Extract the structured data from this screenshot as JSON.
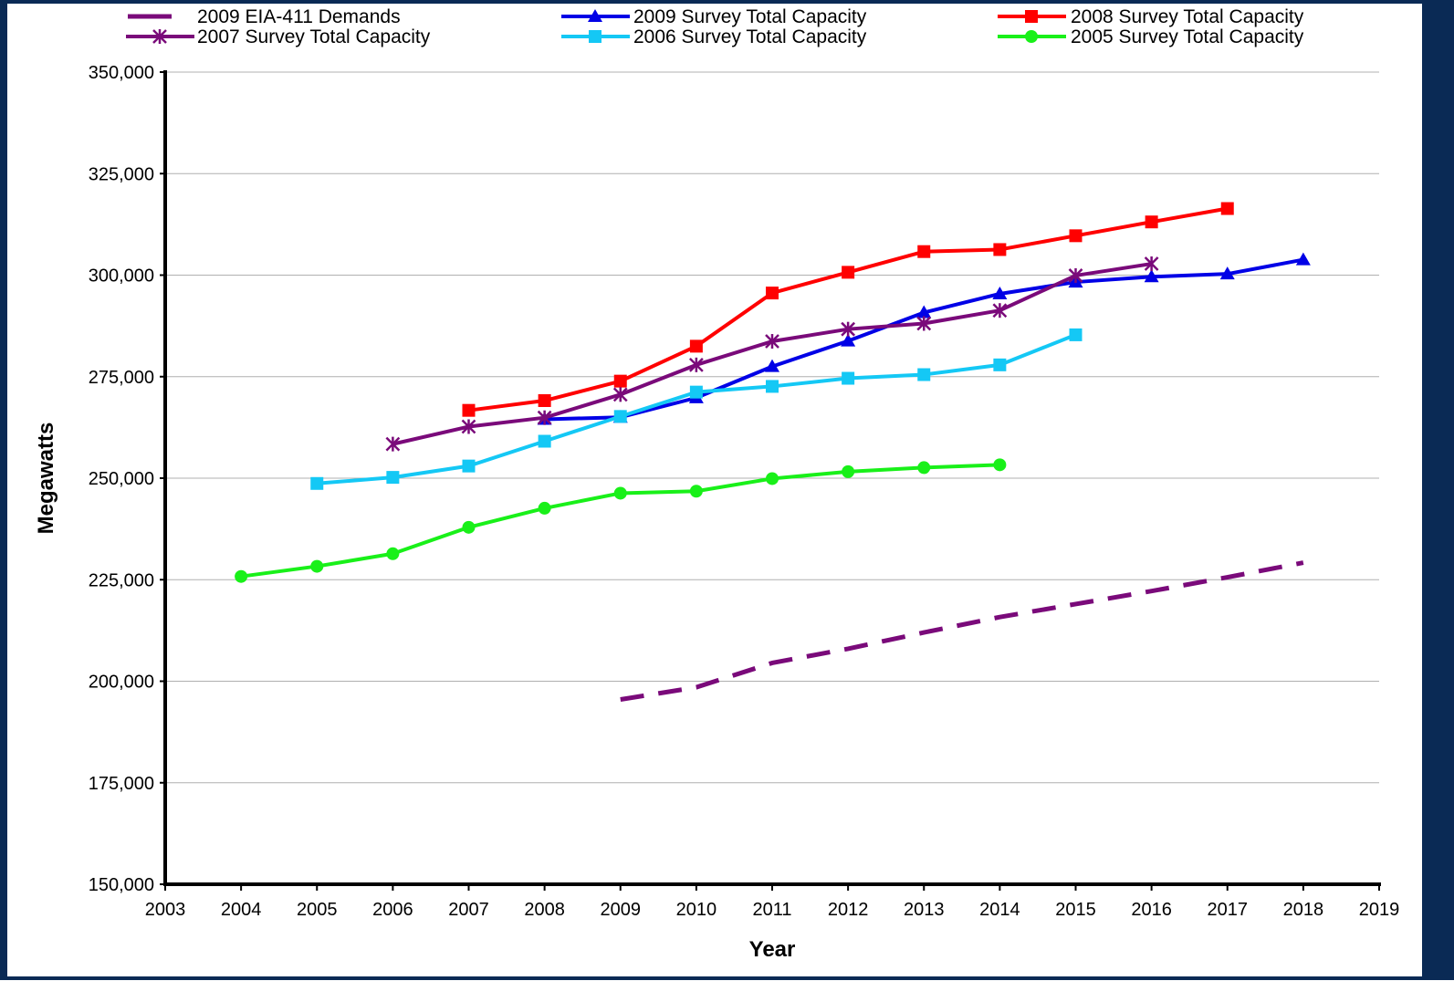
{
  "chart_data": {
    "type": "line",
    "title": "",
    "xlabel": "Year",
    "ylabel": "Megawatts",
    "xlim": [
      2003,
      2019
    ],
    "ylim": [
      150000,
      350000
    ],
    "x_ticks": [
      "2003",
      "2004",
      "2005",
      "2006",
      "2007",
      "2008",
      "2009",
      "2010",
      "2011",
      "2012",
      "2013",
      "2014",
      "2015",
      "2016",
      "2017",
      "2018",
      "2019"
    ],
    "y_ticks": [
      "150,000",
      "175,000",
      "200,000",
      "225,000",
      "250,000",
      "275,000",
      "300,000",
      "325,000",
      "350,000"
    ],
    "y_tick_values": [
      150000,
      175000,
      200000,
      225000,
      250000,
      275000,
      300000,
      325000,
      350000
    ],
    "grid": "horizontal",
    "legend_position": "top",
    "series": [
      {
        "name": "2009 EIA-411 Demands",
        "color": "#7a0a7a",
        "style": "dashed",
        "marker": "none",
        "x": [
          2009,
          2010,
          2011,
          2012,
          2013,
          2014,
          2015,
          2016,
          2017,
          2018
        ],
        "y": [
          195500,
          198500,
          204500,
          208000,
          212000,
          215800,
          219000,
          222200,
          225600,
          229200
        ]
      },
      {
        "name": "2009 Survey Total Capacity",
        "color": "#0000e6",
        "style": "solid",
        "marker": "triangle",
        "x": [
          2008,
          2009,
          2010,
          2011,
          2012,
          2013,
          2014,
          2015,
          2016,
          2017,
          2018
        ],
        "y": [
          264500,
          265000,
          269800,
          277500,
          283800,
          290800,
          295400,
          298300,
          299600,
          300300,
          303800
        ]
      },
      {
        "name": "2008 Survey Total Capacity",
        "color": "#ff0000",
        "style": "solid",
        "marker": "square",
        "x": [
          2007,
          2008,
          2009,
          2010,
          2011,
          2012,
          2013,
          2014,
          2015,
          2016,
          2017
        ],
        "y": [
          266700,
          269100,
          273900,
          282500,
          295600,
          300700,
          305800,
          306300,
          309700,
          313100,
          316400
        ]
      },
      {
        "name": "2007 Survey Total Capacity",
        "color": "#7a0a7a",
        "style": "solid",
        "marker": "star",
        "x": [
          2006,
          2007,
          2008,
          2009,
          2010,
          2011,
          2012,
          2013,
          2014,
          2015,
          2016
        ],
        "y": [
          258400,
          262700,
          264900,
          270600,
          277900,
          283700,
          286700,
          288100,
          291300,
          299900,
          302800
        ]
      },
      {
        "name": "2006 Survey Total Capacity",
        "color": "#14c8f5",
        "style": "solid",
        "marker": "square",
        "x": [
          2005,
          2006,
          2007,
          2008,
          2009,
          2010,
          2011,
          2012,
          2013,
          2014,
          2015
        ],
        "y": [
          248700,
          250200,
          253000,
          259100,
          265200,
          271200,
          272600,
          274600,
          275500,
          277900,
          285300
        ]
      },
      {
        "name": "2005 Survey Total Capacity",
        "color": "#19f019",
        "style": "solid",
        "marker": "circle",
        "x": [
          2004,
          2005,
          2006,
          2007,
          2008,
          2009,
          2010,
          2011,
          2012,
          2013,
          2014
        ],
        "y": [
          225800,
          228300,
          231400,
          237900,
          242600,
          246300,
          246800,
          249900,
          251600,
          252600,
          253300
        ]
      }
    ]
  }
}
